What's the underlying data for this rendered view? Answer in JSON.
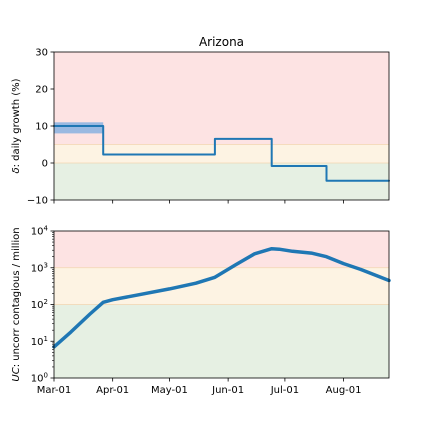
{
  "chart_data": [
    {
      "type": "line",
      "title": "Arizona",
      "ylabel_prefix": "δ",
      "ylabel_suffix": ": daily growth (%)",
      "xlabel": "",
      "ylim": [
        -10,
        30
      ],
      "yticks": [
        -10,
        0,
        10,
        20,
        30
      ],
      "ytick_labels": [
        "−10",
        "0",
        "10",
        "20",
        "30"
      ],
      "x_range": [
        "2020-03-01",
        "2020-08-25"
      ],
      "grid": false,
      "bands": [
        {
          "from": -10,
          "to": 0,
          "color": "#e6f0e3"
        },
        {
          "from": 0,
          "to": 5,
          "color": "#fdf3e3"
        },
        {
          "from": 5,
          "to": 30,
          "color": "#fde3e3"
        }
      ],
      "confidence_band": {
        "x": [
          "2020-03-01",
          "2020-03-27"
        ],
        "lower": 8,
        "upper": 11,
        "color": "#8fb4e0"
      },
      "series": [
        {
          "color": "#1f77b4",
          "step": true,
          "x": [
            "2020-03-01",
            "2020-03-27",
            "2020-03-27",
            "2020-05-25",
            "2020-05-25",
            "2020-06-24",
            "2020-06-24",
            "2020-07-23",
            "2020-07-23",
            "2020-08-25"
          ],
          "values": [
            10,
            10,
            2.3,
            2.3,
            6.5,
            6.5,
            -0.8,
            -0.8,
            -4.8,
            -4.8
          ]
        }
      ]
    },
    {
      "type": "line",
      "ylabel_prefix": "UC",
      "ylabel_suffix": ": uncorr contagious / million",
      "xlabel": "",
      "yscale": "log",
      "ylim": [
        1,
        10000
      ],
      "yticks": [
        1,
        10,
        100,
        1000,
        10000
      ],
      "ytick_labels": [
        [
          "10",
          "0"
        ],
        [
          "10",
          "1"
        ],
        [
          "10",
          "2"
        ],
        [
          "10",
          "3"
        ],
        [
          "10",
          "4"
        ]
      ],
      "x_range": [
        "2020-03-01",
        "2020-08-25"
      ],
      "xticks": [
        "2020-03-01",
        "2020-04-01",
        "2020-05-01",
        "2020-06-01",
        "2020-07-01",
        "2020-08-01"
      ],
      "xtick_labels": [
        "Mar-01",
        "Apr-01",
        "May-01",
        "Jun-01",
        "Jul-01",
        "Aug-01"
      ],
      "grid": false,
      "bands": [
        {
          "from": 1,
          "to": 100,
          "color": "#e6f0e3"
        },
        {
          "from": 100,
          "to": 1000,
          "color": "#fdf3e3"
        },
        {
          "from": 1000,
          "to": 10000,
          "color": "#fde3e3"
        }
      ],
      "series": [
        {
          "color": "#1f77b4",
          "step": false,
          "x": [
            "2020-03-01",
            "2020-03-10",
            "2020-03-20",
            "2020-03-27",
            "2020-04-01",
            "2020-04-15",
            "2020-05-01",
            "2020-05-15",
            "2020-05-25",
            "2020-06-05",
            "2020-06-15",
            "2020-06-24",
            "2020-06-28",
            "2020-07-05",
            "2020-07-15",
            "2020-07-23",
            "2020-08-01",
            "2020-08-10",
            "2020-08-25"
          ],
          "values": [
            7,
            18,
            55,
            115,
            135,
            185,
            265,
            380,
            550,
            1200,
            2400,
            3300,
            3200,
            2800,
            2500,
            2000,
            1300,
            900,
            450
          ]
        }
      ]
    }
  ]
}
